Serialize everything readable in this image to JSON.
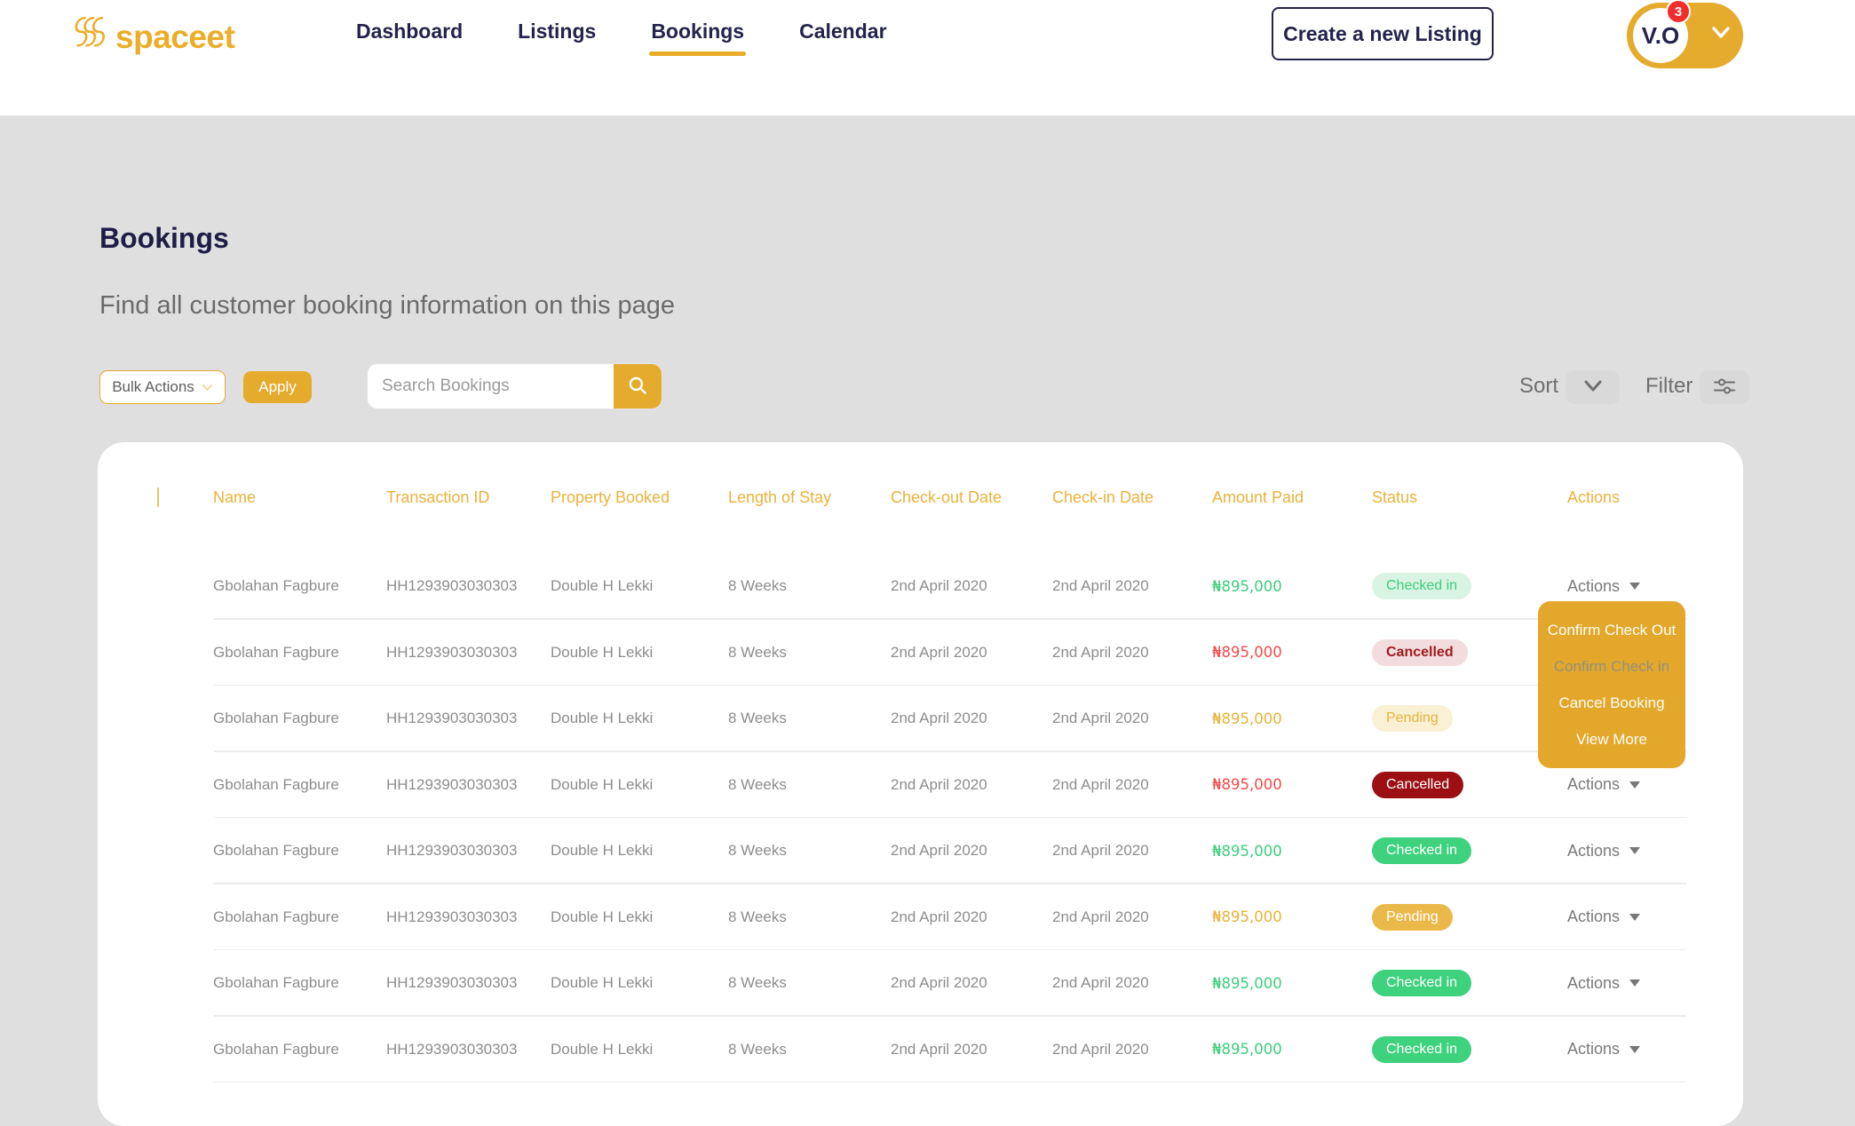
{
  "brand": {
    "name": "spaceet"
  },
  "nav": {
    "items": [
      {
        "label": "Dashboard",
        "active": false
      },
      {
        "label": "Listings",
        "active": false
      },
      {
        "label": "Bookings",
        "active": true
      },
      {
        "label": "Calendar",
        "active": false
      }
    ]
  },
  "header": {
    "create_button_label": "Create a new Listing",
    "avatar_initials": "V.O",
    "notification_count": "3"
  },
  "page": {
    "title": "Bookings",
    "subtitle": "Find all customer booking information on this page"
  },
  "toolbar": {
    "bulk_actions_label": "Bulk Actions",
    "apply_label": "Apply",
    "search_placeholder": "Search Bookings",
    "sort_label": "Sort",
    "filter_label": "Filter"
  },
  "table": {
    "columns": [
      "Name",
      "Transaction ID",
      "Property Booked",
      "Length of Stay",
      "Check-out Date",
      "Check-in Date",
      "Amount Paid",
      "Status",
      "Actions"
    ],
    "actions_label": "Actions",
    "rows": [
      {
        "name": "Gbolahan Fagbure",
        "transaction_id": "HH1293903030303",
        "property": "Double H Lekki",
        "length_of_stay": "8 Weeks",
        "check_out": "2nd April 2020",
        "check_in": "2nd April 2020",
        "amount": "₦895,000",
        "amount_color": "green",
        "status": "Checked in",
        "status_style": "green-light"
      },
      {
        "name": "Gbolahan Fagbure",
        "transaction_id": "HH1293903030303",
        "property": "Double H Lekki",
        "length_of_stay": "8 Weeks",
        "check_out": "2nd April 2020",
        "check_in": "2nd April 2020",
        "amount": "₦895,000",
        "amount_color": "red",
        "status": "Cancelled",
        "status_style": "red-light"
      },
      {
        "name": "Gbolahan Fagbure",
        "transaction_id": "HH1293903030303",
        "property": "Double H Lekki",
        "length_of_stay": "8 Weeks",
        "check_out": "2nd April 2020",
        "check_in": "2nd April 2020",
        "amount": "₦895,000",
        "amount_color": "yellow",
        "status": "Pending",
        "status_style": "yellow-light"
      },
      {
        "name": "Gbolahan Fagbure",
        "transaction_id": "HH1293903030303",
        "property": "Double H Lekki",
        "length_of_stay": "8 Weeks",
        "check_out": "2nd April 2020",
        "check_in": "2nd April 2020",
        "amount": "₦895,000",
        "amount_color": "red",
        "status": "Cancelled",
        "status_style": "red-solid"
      },
      {
        "name": "Gbolahan Fagbure",
        "transaction_id": "HH1293903030303",
        "property": "Double H Lekki",
        "length_of_stay": "8 Weeks",
        "check_out": "2nd April 2020",
        "check_in": "2nd April 2020",
        "amount": "₦895,000",
        "amount_color": "green",
        "status": "Checked in",
        "status_style": "green-solid"
      },
      {
        "name": "Gbolahan Fagbure",
        "transaction_id": "HH1293903030303",
        "property": "Double H Lekki",
        "length_of_stay": "8 Weeks",
        "check_out": "2nd April 2020",
        "check_in": "2nd April 2020",
        "amount": "₦895,000",
        "amount_color": "yellow",
        "status": "Pending",
        "status_style": "yellow-solid"
      },
      {
        "name": "Gbolahan Fagbure",
        "transaction_id": "HH1293903030303",
        "property": "Double H Lekki",
        "length_of_stay": "8 Weeks",
        "check_out": "2nd April 2020",
        "check_in": "2nd April 2020",
        "amount": "₦895,000",
        "amount_color": "green",
        "status": "Checked in",
        "status_style": "green-solid"
      },
      {
        "name": "Gbolahan Fagbure",
        "transaction_id": "HH1293903030303",
        "property": "Double H Lekki",
        "length_of_stay": "8 Weeks",
        "check_out": "2nd April 2020",
        "check_in": "2nd April 2020",
        "amount": "₦895,000",
        "amount_color": "green",
        "status": "Checked in",
        "status_style": "green-solid"
      }
    ]
  },
  "actions_menu": {
    "items": [
      {
        "label": "Confirm Check Out",
        "dimmed": false
      },
      {
        "label": "Confirm Check in",
        "dimmed": true
      },
      {
        "label": "Cancel Booking",
        "dimmed": false
      },
      {
        "label": "View More",
        "dimmed": false
      }
    ]
  },
  "colors": {
    "brand_yellow": "#E5AB2D",
    "navy": "#23234B",
    "green": "#3ED17E",
    "red": "#F24B4B",
    "dark_red": "#9C1013",
    "light_green_bg": "#D9F4E3",
    "light_red_bg": "#F3DCDD",
    "light_yellow_bg": "#FAF0D4",
    "page_bg": "#E0DFDF",
    "notification_red": "#F12D2D"
  }
}
